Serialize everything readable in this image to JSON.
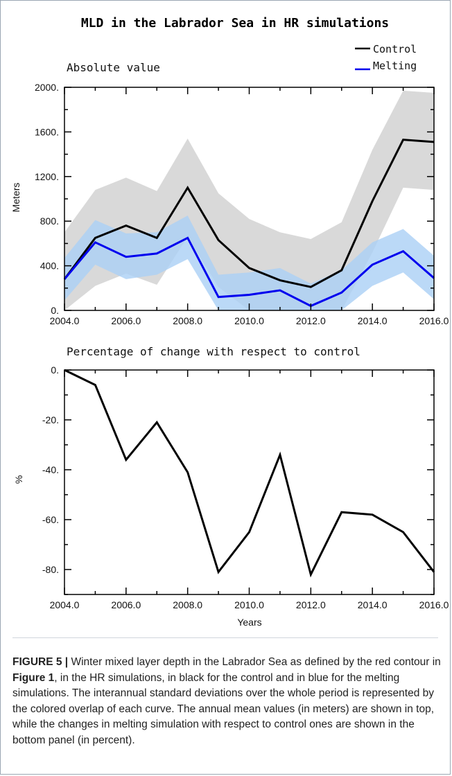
{
  "figure": {
    "title": "MLD in the Labrador Sea in HR simulations",
    "caption": {
      "label": "FIGURE 5 |",
      "text_1": " Winter mixed layer depth in the Labrador Sea as defined by the red contour in ",
      "ref": "Figure 1",
      "text_2": ", in the HR simulations, in black for the control and in blue for the melting simulations. The interannual standard deviations over the whole period is represented by the colored overlap of each curve. The annual mean values (in meters) are shown in top, while the changes in melting simulation with respect to control ones are shown in the bottom panel (in percent)."
    }
  },
  "colors": {
    "control": "#000000",
    "melting": "#0000ee",
    "control_band": "#d9d9d9",
    "melting_band": "#aacff5"
  },
  "chart_data": [
    {
      "type": "line",
      "title": "Absolute value",
      "xlabel": "",
      "ylabel": "Meters",
      "xlim": [
        2004,
        2016
      ],
      "ylim": [
        0,
        2000
      ],
      "x_ticks": [
        "2004.0",
        "2006.0",
        "2008.0",
        "2010.0",
        "2012.0",
        "2014.0",
        "2016.0"
      ],
      "y_ticks": [
        "0.",
        "400.",
        "800.",
        "1200.",
        "1600.",
        "2000."
      ],
      "legend_position": "top-right",
      "x": [
        2004,
        2005,
        2006,
        2007,
        2008,
        2009,
        2010,
        2011,
        2012,
        2013,
        2014,
        2015,
        2016
      ],
      "series": [
        {
          "name": "Control",
          "values": [
            280,
            650,
            760,
            650,
            1100,
            630,
            380,
            270,
            210,
            360,
            980,
            1530,
            1510
          ],
          "upper": [
            700,
            1080,
            1190,
            1070,
            1540,
            1050,
            820,
            700,
            640,
            790,
            1440,
            1970,
            1950
          ],
          "lower": [
            0,
            220,
            330,
            230,
            660,
            210,
            0,
            0,
            0,
            0,
            520,
            1100,
            1080
          ]
        },
        {
          "name": "Melting",
          "values": [
            280,
            610,
            480,
            510,
            650,
            120,
            140,
            180,
            40,
            160,
            410,
            530,
            290
          ],
          "upper": [
            470,
            810,
            690,
            700,
            850,
            320,
            340,
            380,
            240,
            360,
            610,
            730,
            490
          ],
          "lower": [
            90,
            410,
            280,
            320,
            460,
            0,
            0,
            0,
            0,
            0,
            220,
            340,
            100
          ]
        }
      ]
    },
    {
      "type": "line",
      "title": "Percentage of change with respect to control",
      "xlabel": "Years",
      "ylabel": "%",
      "xlim": [
        2004,
        2016
      ],
      "ylim": [
        -90,
        0
      ],
      "x_ticks": [
        "2004.0",
        "2006.0",
        "2008.0",
        "2010.0",
        "2012.0",
        "2014.0",
        "2016.0"
      ],
      "y_ticks": [
        "0.",
        "-20.",
        "-40.",
        "-60.",
        "-80."
      ],
      "x": [
        2004,
        2005,
        2006,
        2007,
        2008,
        2009,
        2010,
        2011,
        2012,
        2013,
        2014,
        2015,
        2016
      ],
      "series": [
        {
          "values": [
            0,
            -6,
            -36,
            -21,
            -41,
            -81,
            -65,
            -34,
            -82,
            -57,
            -58,
            -65,
            -81
          ]
        }
      ]
    }
  ]
}
